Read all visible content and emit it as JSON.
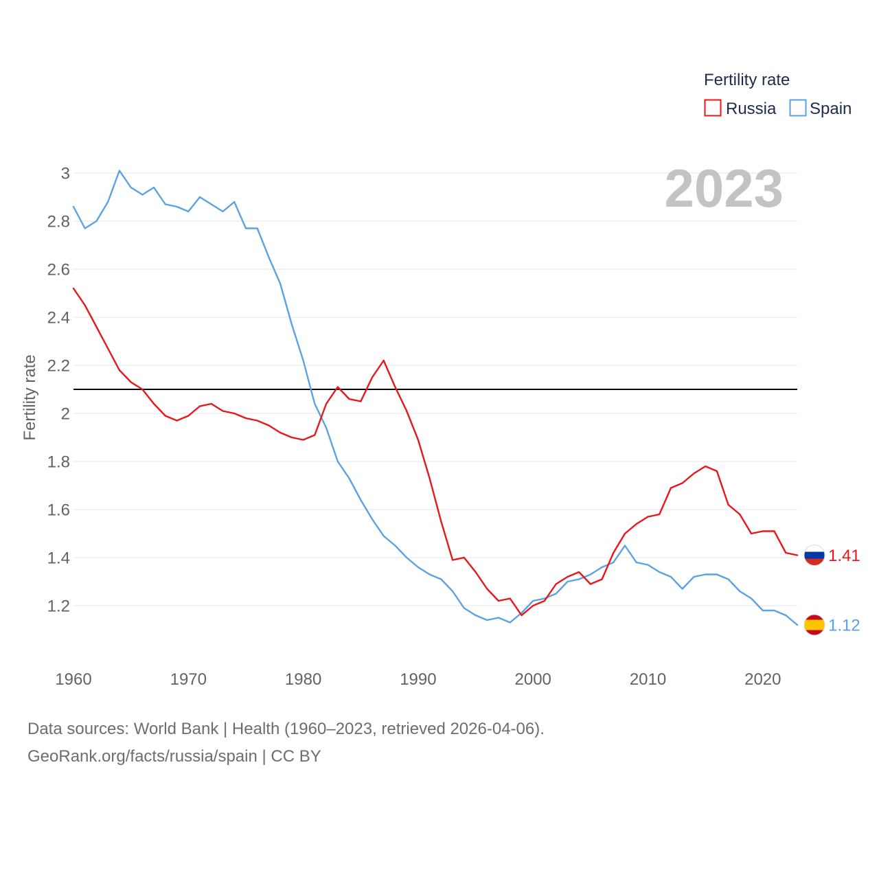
{
  "chart_data": {
    "type": "line",
    "title": "",
    "xlabel": "",
    "ylabel": "Fertility rate",
    "legend_title": "Fertility rate",
    "legend_position": "top-right",
    "year_label": "2023",
    "xlim": [
      1960,
      2023
    ],
    "ylim": [
      1.0,
      3.0
    ],
    "x_ticks": [
      1960,
      1970,
      1980,
      1990,
      2000,
      2010,
      2020
    ],
    "y_ticks": [
      1.2,
      1.4,
      1.6,
      1.8,
      2,
      2.2,
      2.4,
      2.6,
      2.8,
      3
    ],
    "grid": true,
    "reference_line": 2.1,
    "x": [
      1960,
      1961,
      1962,
      1963,
      1964,
      1965,
      1966,
      1967,
      1968,
      1969,
      1970,
      1971,
      1972,
      1973,
      1974,
      1975,
      1976,
      1977,
      1978,
      1979,
      1980,
      1981,
      1982,
      1983,
      1984,
      1985,
      1986,
      1987,
      1988,
      1989,
      1990,
      1991,
      1992,
      1993,
      1994,
      1995,
      1996,
      1997,
      1998,
      1999,
      2000,
      2001,
      2002,
      2003,
      2004,
      2005,
      2006,
      2007,
      2008,
      2009,
      2010,
      2011,
      2012,
      2013,
      2014,
      2015,
      2016,
      2017,
      2018,
      2019,
      2020,
      2021,
      2022,
      2023
    ],
    "series": [
      {
        "name": "Russia",
        "color": "#e8161b",
        "icon": "russia-flag-icon",
        "end_label": "1.41",
        "values": [
          2.52,
          2.45,
          2.36,
          2.27,
          2.18,
          2.13,
          2.1,
          2.04,
          1.99,
          1.97,
          1.99,
          2.03,
          2.04,
          2.01,
          2.0,
          1.98,
          1.97,
          1.95,
          1.92,
          1.9,
          1.89,
          1.91,
          2.04,
          2.11,
          2.06,
          2.05,
          2.15,
          2.22,
          2.11,
          2.01,
          1.89,
          1.73,
          1.55,
          1.39,
          1.4,
          1.34,
          1.27,
          1.22,
          1.23,
          1.16,
          1.2,
          1.22,
          1.29,
          1.32,
          1.34,
          1.29,
          1.31,
          1.42,
          1.5,
          1.54,
          1.57,
          1.58,
          1.69,
          1.71,
          1.75,
          1.78,
          1.76,
          1.62,
          1.58,
          1.5,
          1.51,
          1.51,
          1.42,
          1.41
        ]
      },
      {
        "name": "Spain",
        "color": "#5aa2e3",
        "icon": "spain-flag-icon",
        "end_label": "1.12",
        "values": [
          2.86,
          2.77,
          2.8,
          2.88,
          3.01,
          2.94,
          2.91,
          2.94,
          2.87,
          2.86,
          2.84,
          2.9,
          2.87,
          2.84,
          2.88,
          2.77,
          2.77,
          2.65,
          2.54,
          2.37,
          2.22,
          2.04,
          1.94,
          1.8,
          1.73,
          1.64,
          1.56,
          1.49,
          1.45,
          1.4,
          1.36,
          1.33,
          1.31,
          1.26,
          1.19,
          1.16,
          1.14,
          1.15,
          1.13,
          1.17,
          1.22,
          1.23,
          1.25,
          1.3,
          1.31,
          1.33,
          1.36,
          1.38,
          1.45,
          1.38,
          1.37,
          1.34,
          1.32,
          1.27,
          1.32,
          1.33,
          1.33,
          1.31,
          1.26,
          1.23,
          1.18,
          1.18,
          1.16,
          1.12
        ]
      }
    ]
  },
  "footer": {
    "source": "Data sources: World Bank | Health (1960–2023, retrieved 2026-04-06).",
    "credit": "GeoRank.org/facts/russia/spain | CC BY"
  }
}
